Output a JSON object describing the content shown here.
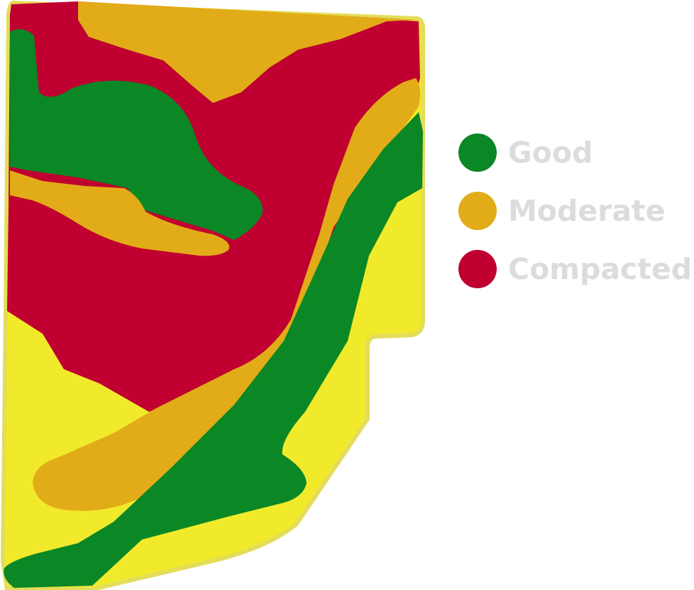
{
  "colors": {
    "field_fill": "#f1ea2b",
    "field_edge": "#e3dd5a",
    "good": "#0b8725",
    "moderate": "#e2ac18",
    "compacted": "#bf0030"
  },
  "legend": {
    "items": [
      {
        "label": "Good",
        "color": "#0b8725"
      },
      {
        "label": "Moderate",
        "color": "#e2ac18"
      },
      {
        "label": "Compacted",
        "color": "#bf0030"
      }
    ]
  }
}
